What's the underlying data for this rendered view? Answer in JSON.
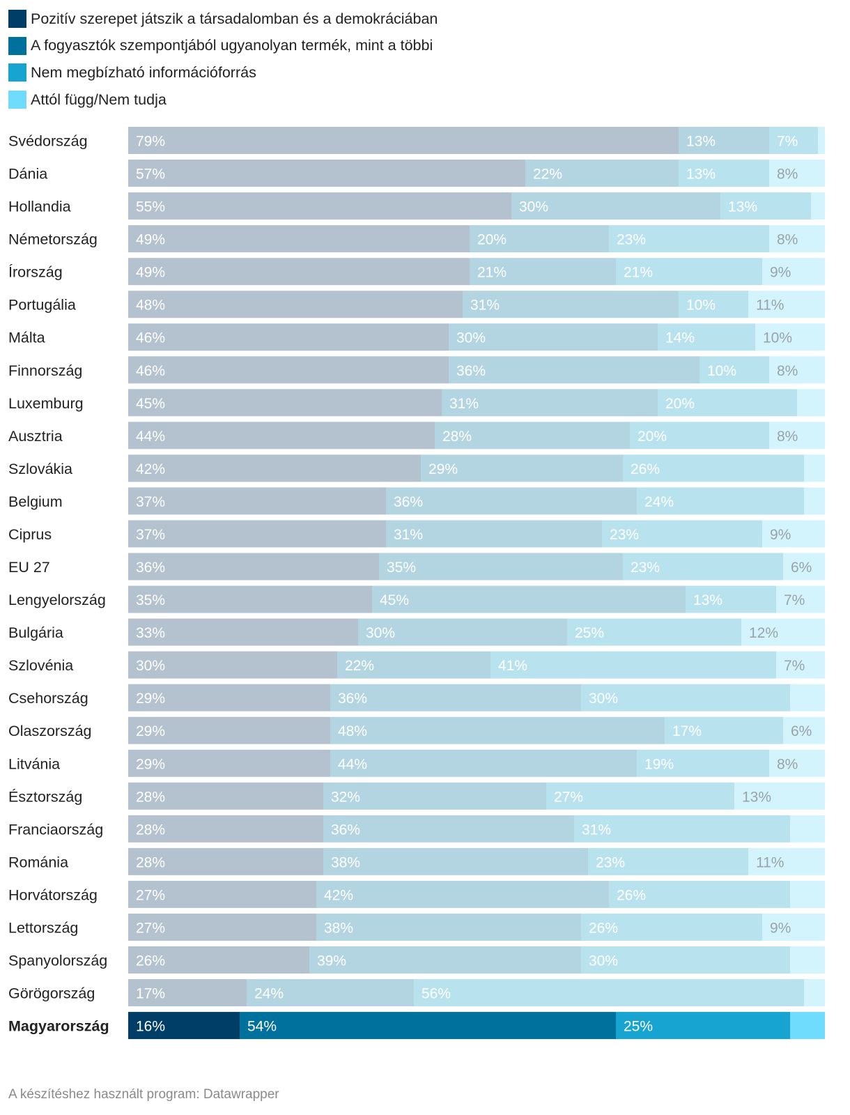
{
  "legend": [
    {
      "label": "Pozitív szerepet játszik a társadalomban és a demokráciában",
      "color": "#003e67"
    },
    {
      "label": "A fogyasztók szempontjából ugyanolyan termék, mint a többi",
      "color": "#00709d"
    },
    {
      "label": "Nem megbízható információforrás",
      "color": "#18a4d1"
    },
    {
      "label": "Attól függ/Nem tudja",
      "color": "#6fdcfd"
    }
  ],
  "faded_colors": [
    "#b3c2ce",
    "#b3d5e1",
    "#b9e2ef",
    "#d3f4fd"
  ],
  "faded_label_colors": [
    "#ffffff",
    "#ffffff",
    "#ffffff",
    "#9aa3a8"
  ],
  "chart_data": {
    "type": "bar",
    "orientation": "horizontal",
    "stacked": true,
    "xlim": [
      0,
      100
    ],
    "highlight": "Magyarország",
    "categories": [
      "Svédország",
      "Dánia",
      "Hollandia",
      "Németország",
      "Írország",
      "Portugália",
      "Málta",
      "Finnország",
      "Luxemburg",
      "Ausztria",
      "Szlovákia",
      "Belgium",
      "Ciprus",
      "EU 27",
      "Lengyelország",
      "Bulgária",
      "Szlovénia",
      "Csehország",
      "Olaszország",
      "Litvánia",
      "Észtország",
      "Franciaország",
      "Románia",
      "Horvátország",
      "Lettország",
      "Spanyolország",
      "Görögország",
      "Magyarország"
    ],
    "series": [
      {
        "name": "Pozitív szerepet játszik a társadalomban és a demokráciában",
        "values": [
          79,
          57,
          55,
          49,
          49,
          48,
          46,
          46,
          45,
          44,
          42,
          37,
          37,
          36,
          35,
          33,
          30,
          29,
          29,
          29,
          28,
          28,
          28,
          27,
          27,
          26,
          17,
          16
        ]
      },
      {
        "name": "A fogyasztók szempontjából ugyanolyan termék, mint a többi",
        "values": [
          13,
          22,
          30,
          20,
          21,
          31,
          30,
          36,
          31,
          28,
          29,
          36,
          31,
          35,
          45,
          30,
          22,
          36,
          48,
          44,
          32,
          36,
          38,
          42,
          38,
          39,
          24,
          54
        ]
      },
      {
        "name": "Nem megbízható információforrás",
        "values": [
          7,
          13,
          13,
          23,
          21,
          10,
          14,
          10,
          20,
          20,
          26,
          24,
          23,
          23,
          13,
          25,
          41,
          30,
          17,
          19,
          27,
          31,
          23,
          26,
          26,
          30,
          56,
          25
        ]
      },
      {
        "name": "Attól függ/Nem tudja",
        "values": [
          1,
          8,
          2,
          8,
          9,
          11,
          10,
          8,
          4,
          8,
          3,
          3,
          9,
          6,
          7,
          12,
          7,
          5,
          6,
          8,
          13,
          5,
          11,
          5,
          9,
          5,
          3,
          5
        ]
      }
    ],
    "labels": [
      [
        "79%",
        "13%",
        "7%",
        ""
      ],
      [
        "57%",
        "22%",
        "13%",
        "8%"
      ],
      [
        "55%",
        "30%",
        "13%",
        ""
      ],
      [
        "49%",
        "20%",
        "23%",
        "8%"
      ],
      [
        "49%",
        "21%",
        "21%",
        "9%"
      ],
      [
        "48%",
        "31%",
        "10%",
        "11%"
      ],
      [
        "46%",
        "30%",
        "14%",
        "10%"
      ],
      [
        "46%",
        "36%",
        "10%",
        "8%"
      ],
      [
        "45%",
        "31%",
        "20%",
        ""
      ],
      [
        "44%",
        "28%",
        "20%",
        "8%"
      ],
      [
        "42%",
        "29%",
        "26%",
        ""
      ],
      [
        "37%",
        "36%",
        "24%",
        ""
      ],
      [
        "37%",
        "31%",
        "23%",
        "9%"
      ],
      [
        "36%",
        "35%",
        "23%",
        "6%"
      ],
      [
        "35%",
        "45%",
        "13%",
        "7%"
      ],
      [
        "33%",
        "30%",
        "25%",
        "12%"
      ],
      [
        "30%",
        "22%",
        "41%",
        "7%"
      ],
      [
        "29%",
        "36%",
        "30%",
        ""
      ],
      [
        "29%",
        "48%",
        "17%",
        "6%"
      ],
      [
        "29%",
        "44%",
        "19%",
        "8%"
      ],
      [
        "28%",
        "32%",
        "27%",
        "13%"
      ],
      [
        "28%",
        "36%",
        "31%",
        ""
      ],
      [
        "28%",
        "38%",
        "23%",
        "11%"
      ],
      [
        "27%",
        "42%",
        "26%",
        ""
      ],
      [
        "27%",
        "38%",
        "26%",
        "9%"
      ],
      [
        "26%",
        "39%",
        "30%",
        ""
      ],
      [
        "17%",
        "24%",
        "56%",
        ""
      ],
      [
        "16%",
        "54%",
        "25%",
        ""
      ]
    ]
  },
  "footer": "A készítéshez használt program: Datawrapper"
}
